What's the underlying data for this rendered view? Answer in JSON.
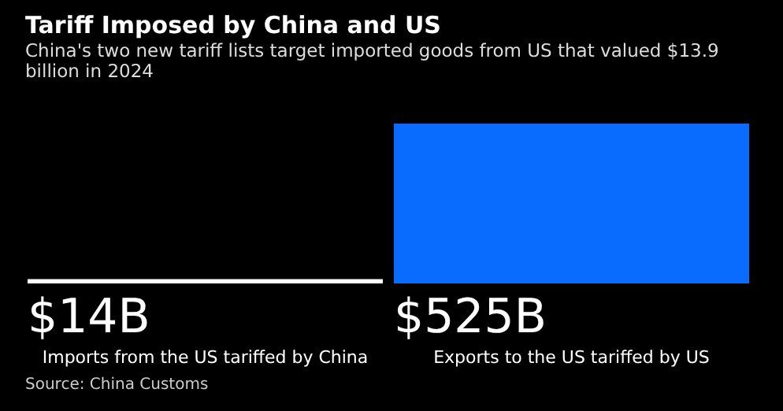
{
  "chart_data": {
    "type": "bar",
    "title": "Tariff Imposed by China and US",
    "subtitle": "China's two new tariff lists target imported goods from US that valued $13.9 billion in 2024",
    "categories": [
      "Imports from the US tariffed by China",
      "Exports to the US tariffed by US"
    ],
    "values": [
      14,
      525
    ],
    "colors": [
      "#ffffff",
      "#0a6cff"
    ],
    "value_labels": [
      "$14B",
      "$525B"
    ],
    "annotations": [
      "Source: China Customs"
    ]
  }
}
